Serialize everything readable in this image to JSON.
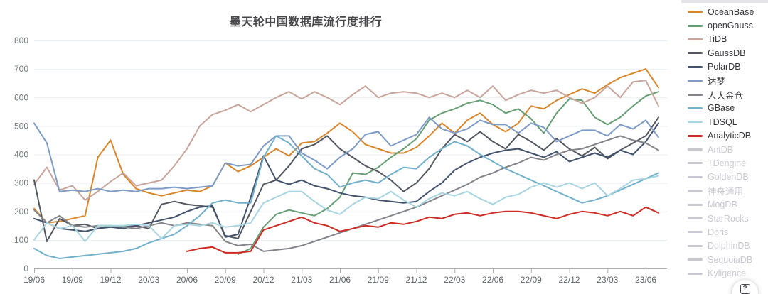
{
  "chart_data": {
    "type": "line",
    "title": "墨天轮中国数据库流行度排行",
    "xlabel": "",
    "ylabel": "",
    "ylim": [
      0,
      800
    ],
    "y_ticks": [
      0,
      100,
      200,
      300,
      400,
      500,
      600,
      700,
      800
    ],
    "grid": true,
    "legend_position": "right",
    "x_label_every": 3,
    "x": [
      "19/06",
      "19/07",
      "19/08",
      "19/09",
      "19/10",
      "19/11",
      "19/12",
      "20/01",
      "20/02",
      "20/03",
      "20/04",
      "20/05",
      "20/06",
      "20/07",
      "20/08",
      "20/09",
      "20/10",
      "20/11",
      "20/12",
      "21/01",
      "21/02",
      "21/03",
      "21/04",
      "21/05",
      "21/06",
      "21/07",
      "21/08",
      "21/09",
      "21/10",
      "21/11",
      "21/12",
      "22/01",
      "22/02",
      "22/03",
      "22/04",
      "22/05",
      "22/06",
      "22/07",
      "22/08",
      "22/09",
      "22/10",
      "22/11",
      "22/12",
      "23/01",
      "23/02",
      "23/03",
      "23/04",
      "23/05",
      "23/06",
      "23/07"
    ],
    "series": [
      {
        "id": "oceanbase",
        "name": "OceanBase",
        "color": "#d8862b",
        "enabled": true,
        "values": [
          210,
          160,
          165,
          175,
          185,
          390,
          450,
          330,
          280,
          265,
          255,
          265,
          275,
          270,
          290,
          370,
          340,
          360,
          390,
          420,
          395,
          440,
          445,
          475,
          510,
          480,
          435,
          420,
          405,
          405,
          425,
          465,
          510,
          475,
          520,
          545,
          505,
          480,
          510,
          570,
          560,
          590,
          610,
          630,
          615,
          645,
          670,
          685,
          700,
          635
        ]
      },
      {
        "id": "opengauss",
        "name": "openGauss",
        "color": "#679e74",
        "enabled": true,
        "values": [
          null,
          null,
          null,
          null,
          null,
          null,
          null,
          null,
          null,
          null,
          null,
          null,
          null,
          null,
          null,
          null,
          50,
          70,
          145,
          190,
          205,
          195,
          185,
          210,
          250,
          335,
          330,
          355,
          390,
          420,
          455,
          520,
          545,
          560,
          580,
          590,
          575,
          545,
          560,
          525,
          475,
          545,
          595,
          590,
          530,
          505,
          530,
          570,
          605,
          620
        ]
      },
      {
        "id": "tidb",
        "name": "TiDB",
        "color": "#c7a59b",
        "enabled": true,
        "values": [
          295,
          355,
          275,
          290,
          240,
          270,
          305,
          335,
          290,
          300,
          310,
          360,
          420,
          500,
          540,
          555,
          575,
          550,
          575,
          600,
          620,
          595,
          620,
          600,
          575,
          610,
          640,
          600,
          615,
          620,
          615,
          600,
          615,
          600,
          625,
          600,
          640,
          590,
          610,
          625,
          615,
          625,
          600,
          580,
          600,
          640,
          600,
          655,
          660,
          570
        ]
      },
      {
        "id": "gaussdb",
        "name": "GaussDB",
        "color": "#54575f",
        "enabled": true,
        "values": [
          310,
          95,
          175,
          150,
          155,
          140,
          150,
          145,
          150,
          140,
          225,
          235,
          225,
          220,
          215,
          115,
          105,
          200,
          295,
          310,
          360,
          420,
          435,
          465,
          420,
          390,
          360,
          340,
          310,
          270,
          300,
          350,
          420,
          470,
          445,
          480,
          445,
          420,
          470,
          445,
          415,
          455,
          420,
          395,
          425,
          385,
          415,
          440,
          465,
          530
        ]
      },
      {
        "id": "polardb",
        "name": "PolarDB",
        "color": "#42526b",
        "enabled": true,
        "values": [
          175,
          160,
          140,
          135,
          130,
          140,
          145,
          140,
          150,
          160,
          170,
          180,
          200,
          215,
          220,
          110,
          120,
          250,
          395,
          310,
          295,
          310,
          290,
          280,
          265,
          255,
          250,
          240,
          235,
          230,
          235,
          270,
          300,
          345,
          370,
          390,
          405,
          415,
          420,
          405,
          390,
          410,
          375,
          390,
          405,
          390,
          415,
          400,
          445,
          510
        ]
      },
      {
        "id": "dameng",
        "name": "达梦",
        "color": "#7e9bc6",
        "enabled": true,
        "values": [
          510,
          440,
          270,
          275,
          270,
          280,
          270,
          275,
          270,
          280,
          280,
          285,
          280,
          285,
          290,
          370,
          360,
          365,
          430,
          465,
          465,
          405,
          380,
          350,
          390,
          420,
          470,
          480,
          430,
          450,
          470,
          530,
          490,
          475,
          490,
          520,
          505,
          505,
          475,
          510,
          495,
          445,
          465,
          485,
          485,
          465,
          505,
          490,
          520,
          460
        ]
      },
      {
        "id": "renda-jincang",
        "name": "人大金仓",
        "color": "#83848a",
        "enabled": true,
        "values": [
          205,
          160,
          185,
          150,
          145,
          150,
          150,
          145,
          140,
          150,
          160,
          150,
          160,
          155,
          150,
          95,
          80,
          85,
          60,
          65,
          70,
          80,
          95,
          110,
          125,
          140,
          155,
          170,
          185,
          200,
          215,
          235,
          255,
          275,
          295,
          320,
          335,
          355,
          370,
          390,
          380,
          400,
          415,
          420,
          435,
          450,
          465,
          450,
          440,
          415
        ]
      },
      {
        "id": "gbase",
        "name": "GBase",
        "color": "#73b1cb",
        "enabled": true,
        "values": [
          70,
          45,
          35,
          40,
          45,
          50,
          55,
          60,
          70,
          90,
          105,
          120,
          150,
          185,
          230,
          240,
          230,
          230,
          390,
          465,
          440,
          395,
          350,
          330,
          285,
          300,
          310,
          300,
          330,
          355,
          350,
          390,
          420,
          445,
          430,
          400,
          375,
          350,
          330,
          310,
          290,
          270,
          250,
          230,
          240,
          255,
          275,
          295,
          315,
          335
        ]
      },
      {
        "id": "tdsql",
        "name": "TDSQL",
        "color": "#a8d5e0",
        "enabled": true,
        "values": [
          100,
          160,
          140,
          150,
          95,
          150,
          150,
          150,
          155,
          150,
          105,
          150,
          155,
          150,
          160,
          145,
          150,
          160,
          230,
          250,
          270,
          270,
          235,
          205,
          190,
          225,
          250,
          245,
          270,
          240,
          215,
          245,
          265,
          255,
          270,
          245,
          225,
          250,
          260,
          285,
          300,
          285,
          300,
          280,
          300,
          255,
          280,
          310,
          315,
          325
        ]
      },
      {
        "id": "analyticdb",
        "name": "AnalyticDB",
        "color": "#ce2b25",
        "enabled": true,
        "values": [
          null,
          null,
          null,
          null,
          null,
          null,
          null,
          null,
          null,
          null,
          null,
          null,
          60,
          70,
          75,
          55,
          55,
          60,
          135,
          150,
          165,
          180,
          160,
          150,
          130,
          140,
          150,
          145,
          160,
          155,
          165,
          180,
          175,
          190,
          195,
          185,
          195,
          200,
          200,
          195,
          185,
          175,
          190,
          200,
          195,
          185,
          200,
          185,
          215,
          195
        ]
      },
      {
        "id": "antdb",
        "name": "AntDB",
        "color": "#c9cad1",
        "enabled": false,
        "values": []
      },
      {
        "id": "tdengine",
        "name": "TDengine",
        "color": "#c9cad1",
        "enabled": false,
        "values": []
      },
      {
        "id": "goldendb",
        "name": "GoldenDB",
        "color": "#c9cad1",
        "enabled": false,
        "values": []
      },
      {
        "id": "shenzhou-tongyong",
        "name": "神舟通用",
        "color": "#c9cad1",
        "enabled": false,
        "values": []
      },
      {
        "id": "mogdb",
        "name": "MogDB",
        "color": "#c9cad1",
        "enabled": false,
        "values": []
      },
      {
        "id": "starrocks",
        "name": "StarRocks",
        "color": "#c9cad1",
        "enabled": false,
        "values": []
      },
      {
        "id": "doris",
        "name": "Doris",
        "color": "#c9cad1",
        "enabled": false,
        "values": []
      },
      {
        "id": "dolphindb",
        "name": "DolphinDB",
        "color": "#c9cad1",
        "enabled": false,
        "values": []
      },
      {
        "id": "sequoiadb",
        "name": "SequoiaDB",
        "color": "#c9cad1",
        "enabled": false,
        "values": []
      },
      {
        "id": "kyligence",
        "name": "Kyligence",
        "color": "#c9cad1",
        "enabled": false,
        "values": []
      }
    ],
    "style": {
      "grid_color": "#e8eef6",
      "axis_color": "#a9acb2",
      "y_tick_color": "#75797f",
      "x_tick_color": "#5f6368",
      "title_color": "#464649",
      "legend_text_color": "#37383c",
      "legend_disabled_color": "#c9cad1"
    }
  },
  "help_button": {
    "glyph": "?"
  }
}
